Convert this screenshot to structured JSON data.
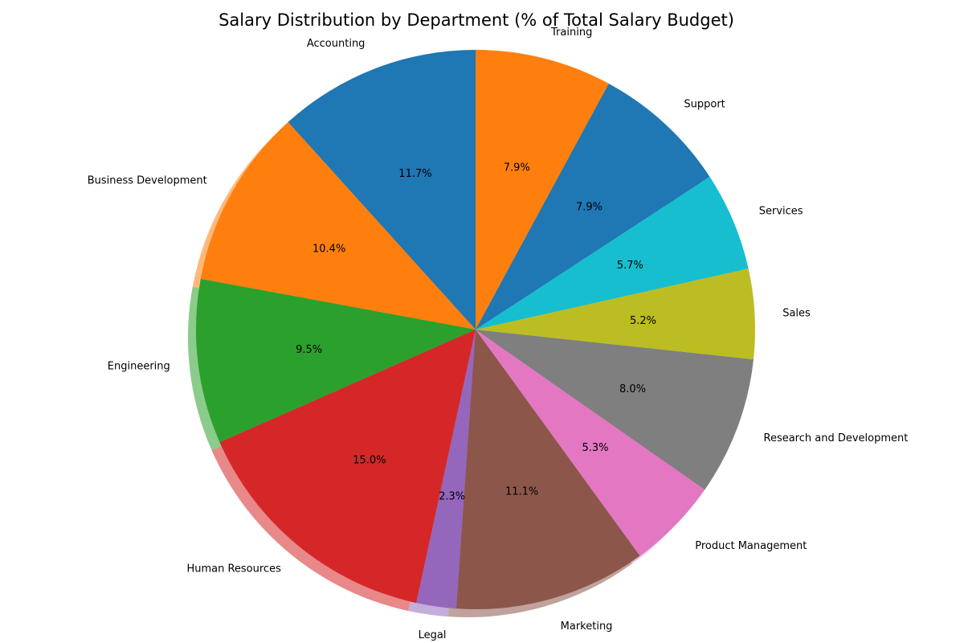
{
  "chart_data": {
    "type": "pie",
    "title": "Salary Distribution by Department (% of Total Salary Budget)",
    "start_angle_deg": 90,
    "direction": "counterclockwise",
    "shadow": true,
    "slices": [
      {
        "label": "Accounting",
        "value": 11.7,
        "pct_label": "11.7%",
        "color": "#1f77b4"
      },
      {
        "label": "Business Development",
        "value": 10.4,
        "pct_label": "10.4%",
        "color": "#ff7f0e"
      },
      {
        "label": "Engineering",
        "value": 9.5,
        "pct_label": "9.5%",
        "color": "#2ca02c"
      },
      {
        "label": "Human Resources",
        "value": 15.0,
        "pct_label": "15.0%",
        "color": "#d62728"
      },
      {
        "label": "Legal",
        "value": 2.3,
        "pct_label": "2.3%",
        "color": "#9467bd"
      },
      {
        "label": "Marketing",
        "value": 11.1,
        "pct_label": "11.1%",
        "color": "#8c564b"
      },
      {
        "label": "Product Management",
        "value": 5.3,
        "pct_label": "5.3%",
        "color": "#e377c2"
      },
      {
        "label": "Research and Development",
        "value": 8.0,
        "pct_label": "8.0%",
        "color": "#7f7f7f"
      },
      {
        "label": "Sales",
        "value": 5.2,
        "pct_label": "5.2%",
        "color": "#bcbd22"
      },
      {
        "label": "Services",
        "value": 5.7,
        "pct_label": "5.7%",
        "color": "#17becf"
      },
      {
        "label": "Support",
        "value": 7.9,
        "pct_label": "7.9%",
        "color": "#1f77b4"
      },
      {
        "label": "Training",
        "value": 7.9,
        "pct_label": "7.9%",
        "color": "#ff7f0e"
      }
    ]
  }
}
